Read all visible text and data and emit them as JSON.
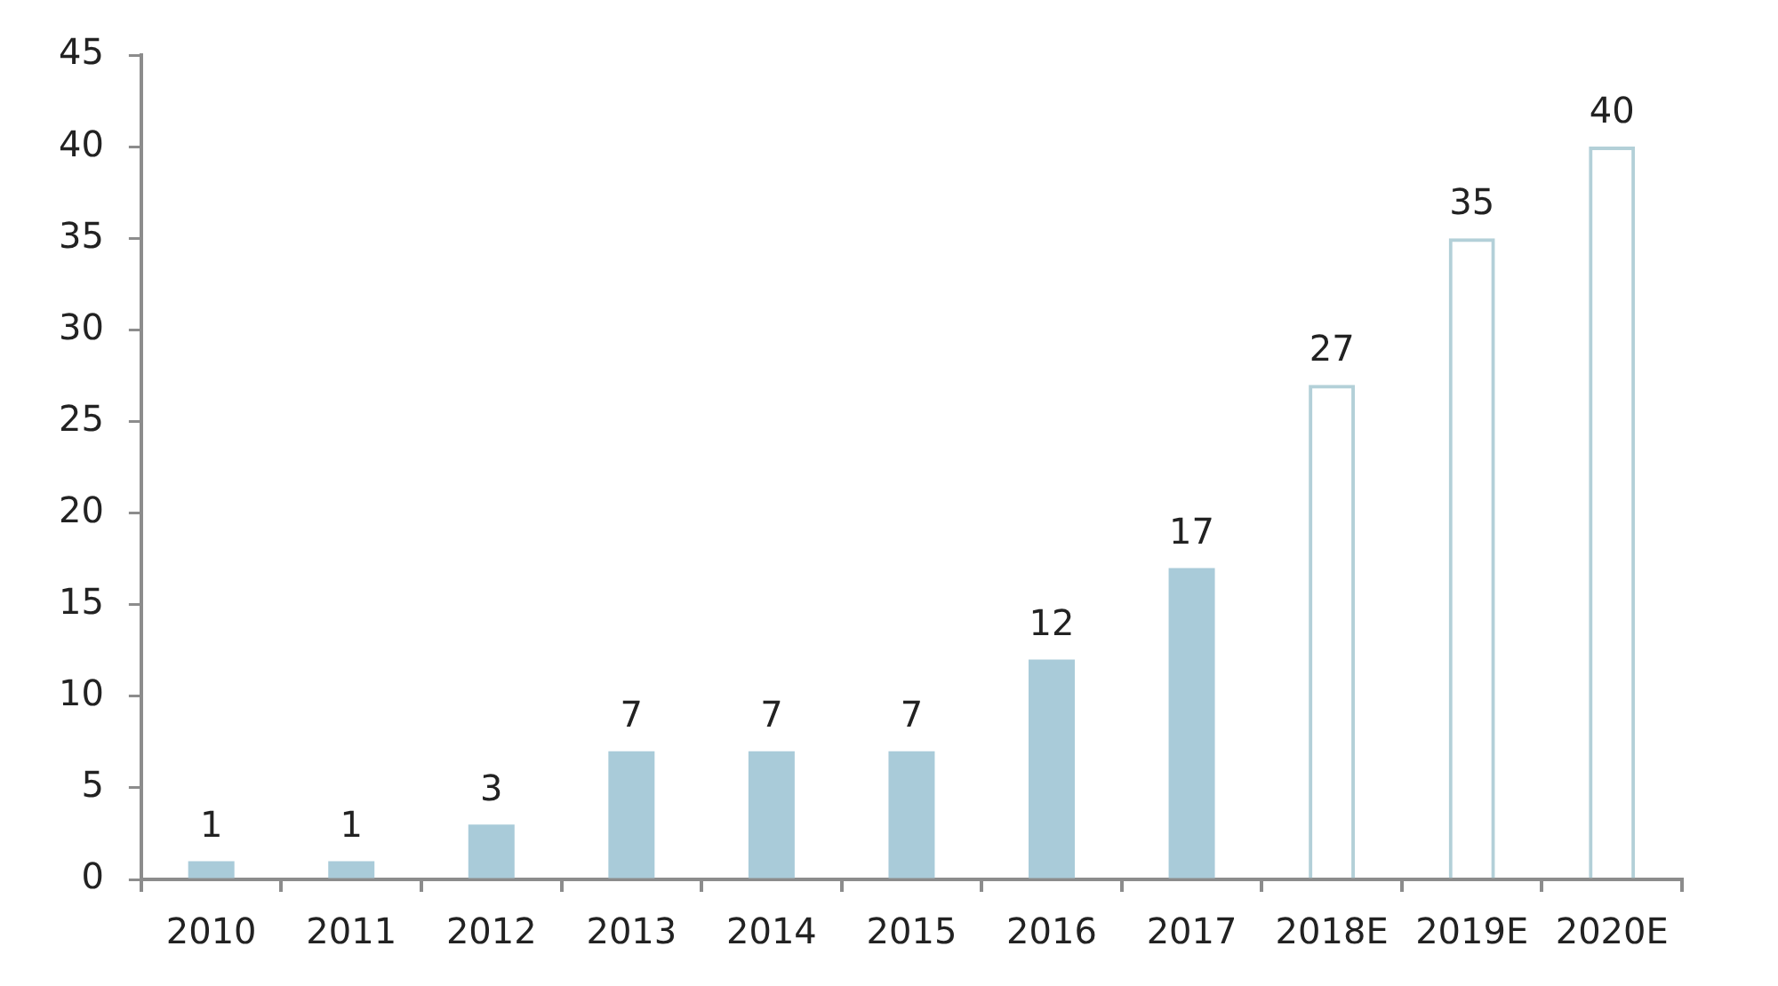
{
  "chart_data": {
    "type": "bar",
    "categories": [
      "2010",
      "2011",
      "2012",
      "2013",
      "2014",
      "2015",
      "2016",
      "2017",
      "2018E",
      "2019E",
      "2020E"
    ],
    "values": [
      1,
      1,
      3,
      7,
      7,
      7,
      12,
      17,
      27,
      35,
      40
    ],
    "color": "#a9cbd9",
    "colors": [
      "#a9cbd9",
      "#a9cbd9",
      "#a9cbd9",
      "#a9cbd9",
      "#a9cbd9",
      "#a9cbd9",
      "#a9cbd9",
      "#a9cbd9",
      "#b3d0d8",
      "#b3d0d8",
      "#b3d0d8"
    ],
    "ylim": [
      0,
      45
    ],
    "yticks": [
      0,
      5,
      10,
      15,
      20,
      25,
      30,
      35,
      40,
      45
    ],
    "grid": false,
    "legend": false,
    "data_labels": true
  }
}
